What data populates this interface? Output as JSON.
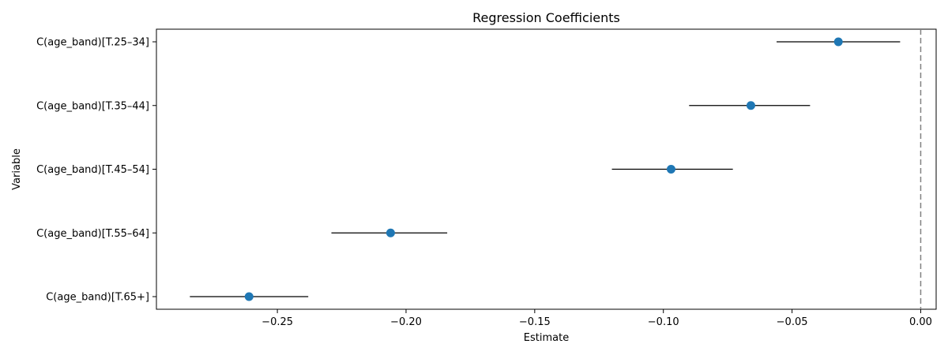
{
  "chart_data": {
    "type": "scatter",
    "title": "Regression Coefficients",
    "xlabel": "Estimate",
    "ylabel": "Variable",
    "xlim": [
      -0.297,
      0.006
    ],
    "xticks": [
      -0.25,
      -0.2,
      -0.15,
      -0.1,
      -0.05,
      0.0
    ],
    "xtick_labels": [
      "−0.25",
      "−0.20",
      "−0.15",
      "−0.10",
      "−0.05",
      "0.00"
    ],
    "categories": [
      "C(age_band)[T.25–34]",
      "C(age_band)[T.35–44]",
      "C(age_band)[T.45–54]",
      "C(age_band)[T.55–64]",
      "C(age_band)[T.65+]"
    ],
    "series": [
      {
        "values": [
          -0.032,
          -0.066,
          -0.097,
          -0.206,
          -0.261
        ],
        "ci_low": [
          -0.056,
          -0.09,
          -0.12,
          -0.229,
          -0.284
        ],
        "ci_high": [
          -0.008,
          -0.043,
          -0.073,
          -0.184,
          -0.238
        ]
      }
    ],
    "reference_line": 0.0,
    "grid": false,
    "colors": {
      "point": "#1f77b4",
      "errorbar": "#000000",
      "refline": "#808080"
    }
  }
}
